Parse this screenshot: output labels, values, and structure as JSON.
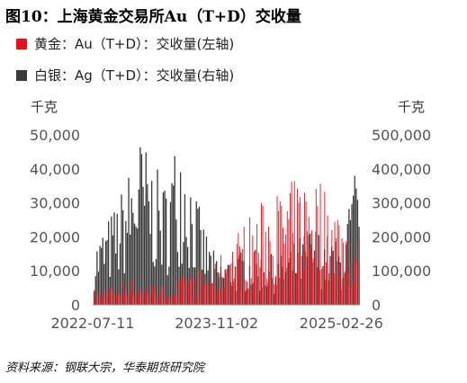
{
  "title": "图10：上海黄金交易所Au（T+D）交收量",
  "source": "资料来源：钢联大宗，华泰期货研究院",
  "chart_data": {
    "type": "bar",
    "y_unit_left": "千克",
    "y_unit_right": "千克",
    "ylim_left": [
      0,
      50000
    ],
    "ylim_right": [
      0,
      500000
    ],
    "yticks_left": [
      "50,000",
      "40,000",
      "30,000",
      "20,000",
      "10,000",
      "0"
    ],
    "yticks_right": [
      "500,000",
      "400,000",
      "300,000",
      "200,000",
      "100,000",
      "0"
    ],
    "x_ticks": [
      "2022-07-11",
      "2023-11-02",
      "2025-02-26"
    ],
    "x_range": [
      "2022-07-11",
      "2025-05-09"
    ],
    "grid": false,
    "legend_position": "top-left",
    "series": [
      {
        "name": "黄金：Au（T+D）：交收量(左轴)",
        "axis": "left",
        "color": "#e8101a",
        "sampled": [
          {
            "x": "2022-07-11",
            "y": 4000
          },
          {
            "x": "2022-12-01",
            "y": 7000
          },
          {
            "x": "2023-04-10",
            "y": 5000
          },
          {
            "x": "2023-08-01",
            "y": 9000
          },
          {
            "x": "2023-11-02",
            "y": 12000
          },
          {
            "x": "2024-02-15",
            "y": 22000
          },
          {
            "x": "2024-05-10",
            "y": 28000
          },
          {
            "x": "2024-08-20",
            "y": 32000
          },
          {
            "x": "2024-11-05",
            "y": 36000
          },
          {
            "x": "2025-02-26",
            "y": 25000
          },
          {
            "x": "2025-05-09",
            "y": 18000
          }
        ]
      },
      {
        "name": "白银：Ag（T+D）：交收量(右轴)",
        "axis": "right",
        "color": "#3a3a3a",
        "sampled": [
          {
            "x": "2022-07-11",
            "y": 150000
          },
          {
            "x": "2022-10-15",
            "y": 260000
          },
          {
            "x": "2023-01-10",
            "y": 420000
          },
          {
            "x": "2023-04-10",
            "y": 300000
          },
          {
            "x": "2023-06-15",
            "y": 460000
          },
          {
            "x": "2023-09-01",
            "y": 220000
          },
          {
            "x": "2023-11-02",
            "y": 110000
          },
          {
            "x": "2024-03-01",
            "y": 140000
          },
          {
            "x": "2024-07-01",
            "y": 120000
          },
          {
            "x": "2024-11-05",
            "y": 200000
          },
          {
            "x": "2025-02-26",
            "y": 150000
          },
          {
            "x": "2025-04-20",
            "y": 350000
          },
          {
            "x": "2025-05-09",
            "y": 200000
          }
        ]
      }
    ]
  }
}
